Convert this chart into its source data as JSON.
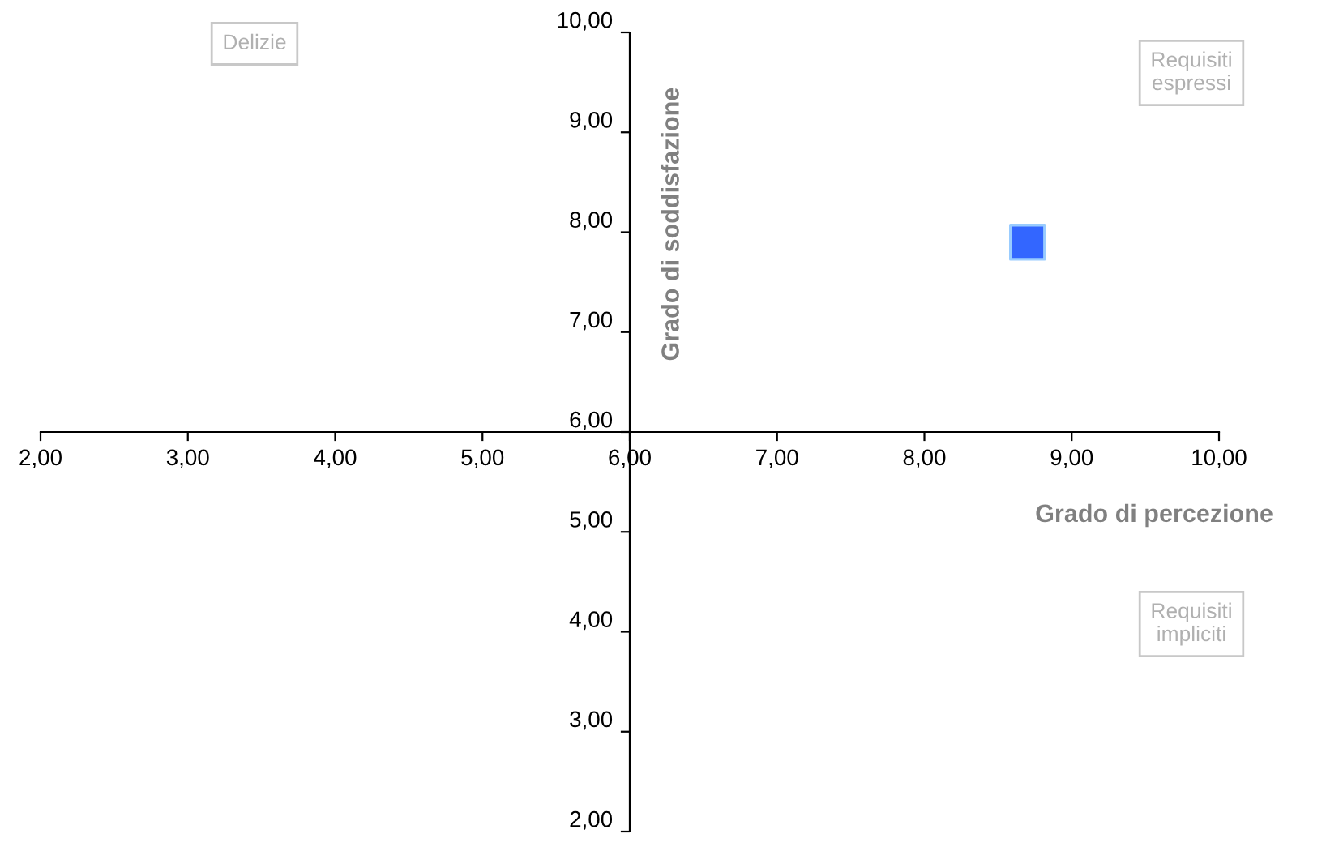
{
  "chart_data": {
    "type": "scatter",
    "xlabel": "Grado di percezione",
    "ylabel": "Grado di soddisfazione",
    "x": [
      8.7
    ],
    "values": [
      7.9
    ],
    "color": "#3366ff",
    "marker": "square",
    "xlim": [
      2,
      10
    ],
    "ylim": [
      2,
      10
    ],
    "xticks": [
      {
        "value": 2,
        "label": "2,00"
      },
      {
        "value": 3,
        "label": "3,00"
      },
      {
        "value": 4,
        "label": "4,00"
      },
      {
        "value": 5,
        "label": "5,00"
      },
      {
        "value": 6,
        "label": "6,00"
      },
      {
        "value": 7,
        "label": "7,00"
      },
      {
        "value": 8,
        "label": "8,00"
      },
      {
        "value": 9,
        "label": "9,00"
      },
      {
        "value": 10,
        "label": "10,00"
      }
    ],
    "yticks": [
      {
        "value": 2,
        "label": "2,00"
      },
      {
        "value": 3,
        "label": "3,00"
      },
      {
        "value": 4,
        "label": "4,00"
      },
      {
        "value": 5,
        "label": "5,00"
      },
      {
        "value": 6,
        "label": "6,00"
      },
      {
        "value": 7,
        "label": "7,00"
      },
      {
        "value": 8,
        "label": "8,00"
      },
      {
        "value": 9,
        "label": "9,00"
      },
      {
        "value": 10,
        "label": "10,00"
      }
    ],
    "annotations": [
      "Delizie",
      "Requisiti\nespressi",
      "Requisiti\nimpliciti"
    ],
    "grid": false,
    "legend": false
  }
}
